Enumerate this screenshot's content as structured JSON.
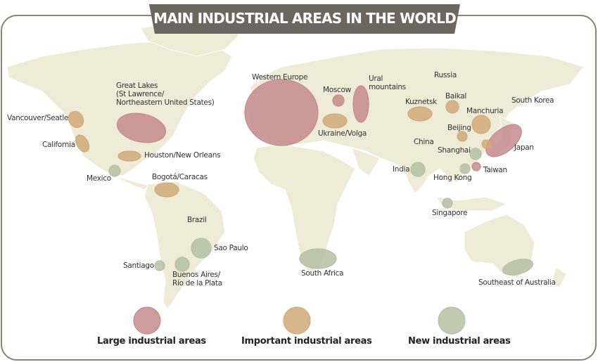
{
  "title": "MAIN INDUSTRIAL AREAS IN THE WORLD",
  "labels": [
    "Western Europe",
    "Moscow",
    "Ural\nmountains",
    "Russia",
    "Baikal",
    "Kuznetsk",
    "Manchuria",
    "South Korea",
    "Beijing",
    "Japan",
    "China",
    "Shanghai",
    "India",
    "Taiwan",
    "Hong Kong",
    "Singapore",
    "Ukraine/Volga",
    "Great Lakes\n(St Lawrence/\nNortheastern United States)",
    "Vancouver/Seatle",
    "California",
    "Houston/New Orleans",
    "Mexico",
    "Bogotá/Caracas",
    "Brazil",
    "Sao Paulo",
    "Santiago",
    "Buenos Aires/\nRío de la Plata",
    "South Africa",
    "Southeast of Australia"
  ],
  "legend": [
    {
      "label": "Large industrial areas",
      "color": "#e8a3a5"
    },
    {
      "label": "Important industrial areas",
      "color": "#f6c88e"
    },
    {
      "label": "New industrial areas",
      "color": "#d3e3c1"
    }
  ]
}
